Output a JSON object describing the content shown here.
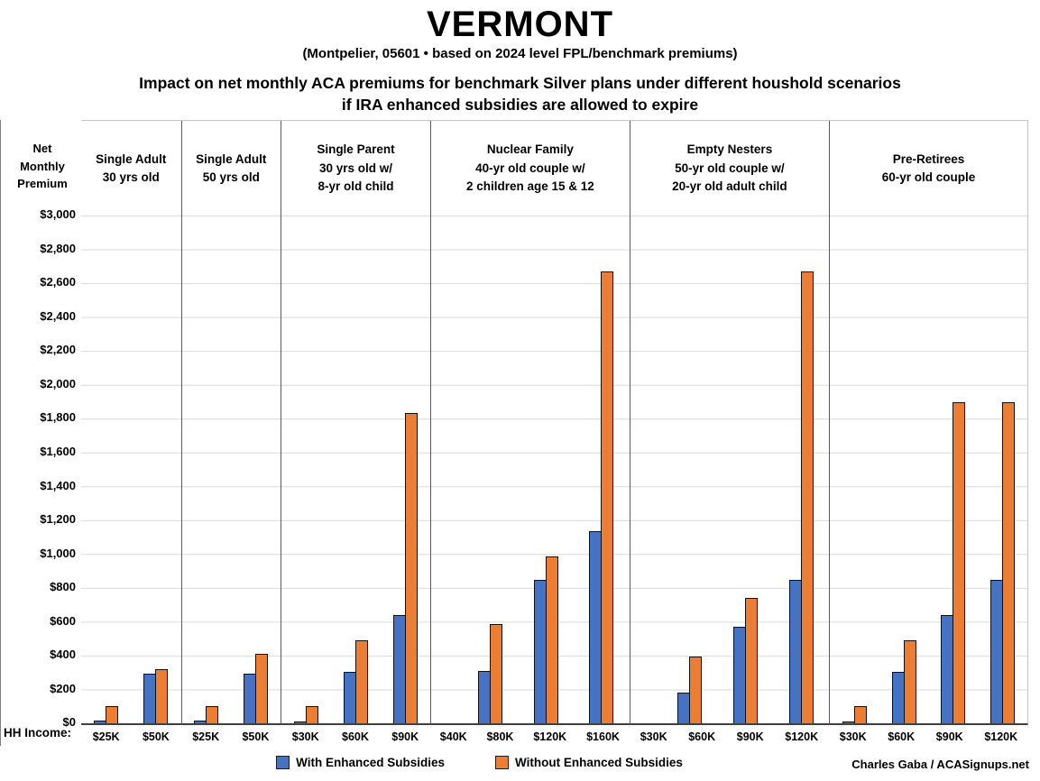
{
  "title": "VERMONT",
  "subtitle": "(Montpelier, 05601 • based on 2024 level FPL/benchmark premiums)",
  "heading_line1": "Impact on net monthly ACA premiums for benchmark Silver plans under different houshold scenarios",
  "heading_line2": "if IRA enhanced subsidies are allowed to expire",
  "y_axis": {
    "title_lines": [
      "Net",
      "Monthly",
      "Premium"
    ],
    "tick_prefix": "$",
    "max": 3000,
    "step": 200
  },
  "x_axis": {
    "label": "HH Income:"
  },
  "colors": {
    "with_enhanced": "#4472C4",
    "without_enhanced": "#ED7D31"
  },
  "legend": [
    {
      "key": "with_enhanced",
      "label": "With Enhanced Subsidies",
      "color": "#4472C4"
    },
    {
      "key": "without_enhanced",
      "label": "Without Enhanced Subsidies",
      "color": "#ED7D31"
    }
  ],
  "credit": "Charles Gaba / ACASignups.net",
  "chart_data": {
    "type": "bar",
    "title": "VERMONT — Impact on net monthly ACA premiums for benchmark Silver plans if IRA enhanced subsidies expire",
    "ylabel": "Net Monthly Premium ($)",
    "ylim": [
      0,
      3000
    ],
    "grid": true,
    "legend_position": "bottom",
    "series_names": [
      "With Enhanced Subsidies",
      "Without Enhanced Subsidies"
    ],
    "panels": [
      {
        "header": [
          "Single Adult",
          "30 yrs old"
        ],
        "groups": [
          {
            "income": "$25K",
            "with_enhanced": 20,
            "without_enhanced": 105
          },
          {
            "income": "$50K",
            "with_enhanced": 295,
            "without_enhanced": 320
          }
        ]
      },
      {
        "header": [
          "Single Adult",
          "50 yrs old"
        ],
        "groups": [
          {
            "income": "$25K",
            "with_enhanced": 20,
            "without_enhanced": 105
          },
          {
            "income": "$50K",
            "with_enhanced": 295,
            "without_enhanced": 410
          }
        ]
      },
      {
        "header": [
          "Single Parent",
          "30 yrs old w/",
          "8-yr old child"
        ],
        "groups": [
          {
            "income": "$30K",
            "with_enhanced": 4,
            "without_enhanced": 105
          },
          {
            "income": "$60K",
            "with_enhanced": 305,
            "without_enhanced": 490
          },
          {
            "income": "$90K",
            "with_enhanced": 640,
            "without_enhanced": 1835
          }
        ]
      },
      {
        "header": [
          "Nuclear Family",
          "40-yr old couple w/",
          "2 children age 15 & 12"
        ],
        "groups": [
          {
            "income": "$40K",
            "with_enhanced": 0,
            "without_enhanced": 0
          },
          {
            "income": "$80K",
            "with_enhanced": 310,
            "without_enhanced": 590
          },
          {
            "income": "$120K",
            "with_enhanced": 850,
            "without_enhanced": 985
          },
          {
            "income": "$160K",
            "with_enhanced": 1135,
            "without_enhanced": 2670
          }
        ]
      },
      {
        "header": [
          "Empty Nesters",
          "50-yr old couple w/",
          "20-yr old adult child"
        ],
        "groups": [
          {
            "income": "$30K",
            "with_enhanced": 0,
            "without_enhanced": 0
          },
          {
            "income": "$60K",
            "with_enhanced": 185,
            "without_enhanced": 395
          },
          {
            "income": "$90K",
            "with_enhanced": 570,
            "without_enhanced": 740
          },
          {
            "income": "$120K",
            "with_enhanced": 850,
            "without_enhanced": 2670
          }
        ]
      },
      {
        "header": [
          "Pre-Retirees",
          "60-yr old couple"
        ],
        "groups": [
          {
            "income": "$30K",
            "with_enhanced": 4,
            "without_enhanced": 105
          },
          {
            "income": "$60K",
            "with_enhanced": 305,
            "without_enhanced": 490
          },
          {
            "income": "$90K",
            "with_enhanced": 640,
            "without_enhanced": 1900
          },
          {
            "income": "$120K",
            "with_enhanced": 850,
            "without_enhanced": 1900
          }
        ]
      }
    ]
  }
}
